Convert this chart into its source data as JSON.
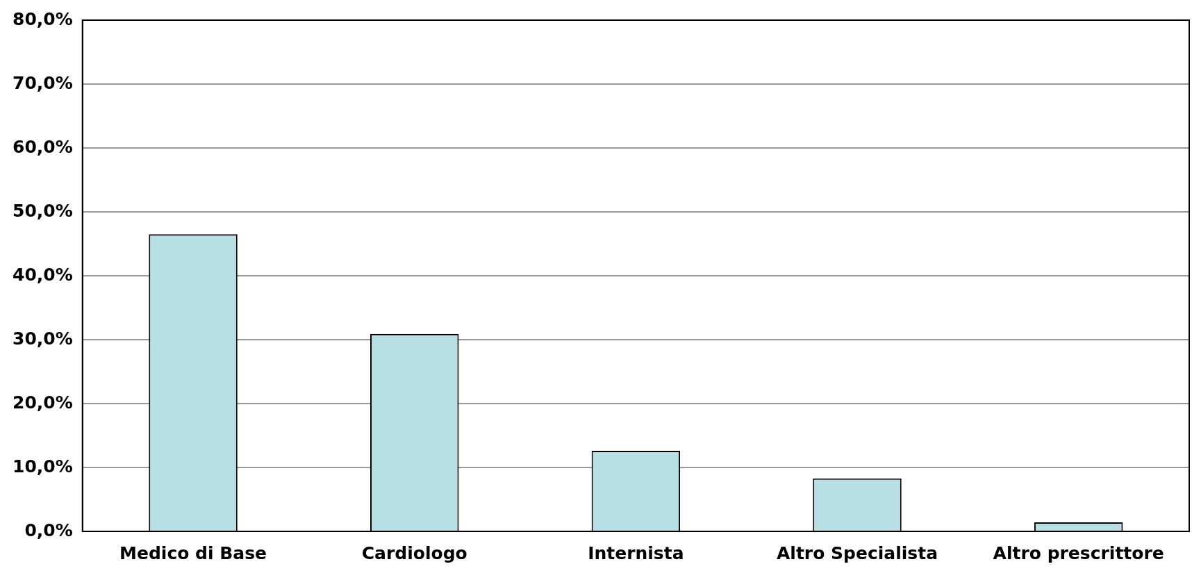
{
  "chart_data": {
    "type": "bar",
    "categories": [
      "Medico di Base",
      "Cardiologo",
      "Internista",
      "Altro Specialista",
      "Altro prescrittore"
    ],
    "values": [
      46.5,
      30.9,
      12.6,
      8.3,
      1.4
    ],
    "color": "#b8dfe3",
    "ylim": [
      0,
      80
    ],
    "yticks": [
      {
        "value": 0,
        "label": "0,0%"
      },
      {
        "value": 10,
        "label": "10,0%"
      },
      {
        "value": 20,
        "label": "20,0%"
      },
      {
        "value": 30,
        "label": "30,0%"
      },
      {
        "value": 40,
        "label": "40,0%"
      },
      {
        "value": 50,
        "label": "50,0%"
      },
      {
        "value": 60,
        "label": "60,0%"
      },
      {
        "value": 70,
        "label": "70,0%"
      },
      {
        "value": 80,
        "label": "80,0%"
      }
    ],
    "grid": "y",
    "legend": false
  }
}
